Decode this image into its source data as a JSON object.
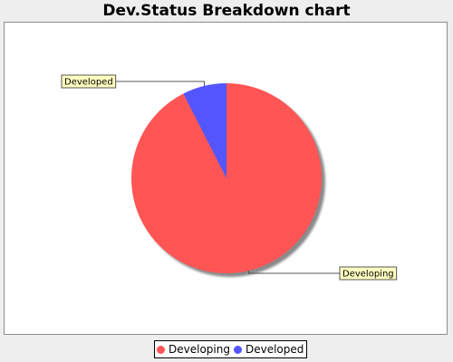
{
  "chart_data": {
    "type": "pie",
    "title": "Dev.Status Breakdown chart",
    "categories": [
      "Developing",
      "Developed"
    ],
    "values": [
      92.5,
      7.5
    ],
    "colors": [
      "#ff5555",
      "#5555ff"
    ],
    "legend_position": "bottom"
  }
}
